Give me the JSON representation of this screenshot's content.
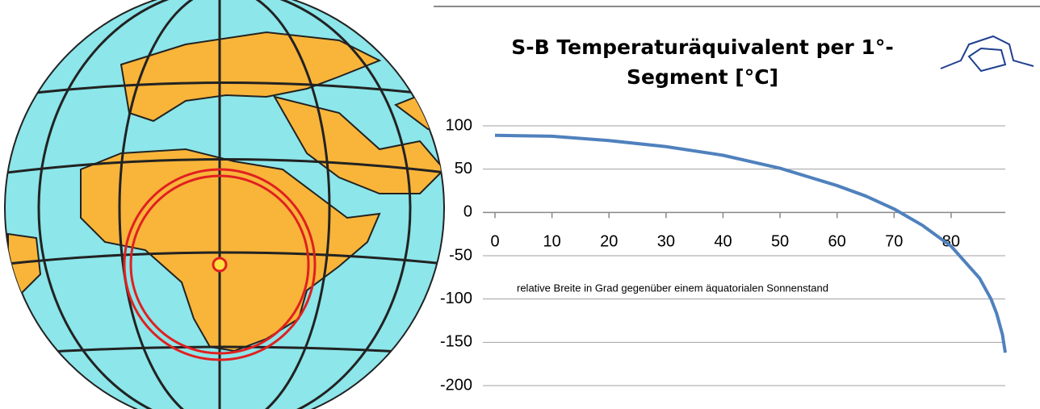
{
  "chart_data": {
    "type": "line",
    "title": "S-B Temperaturäquivalent per 1°-Segment [°C]",
    "x_label": "relative Breite in Grad gegenüber einem äquatorialen Sonnenstand",
    "x": [
      0,
      10,
      20,
      30,
      40,
      50,
      60,
      65,
      70,
      75,
      80,
      85,
      87,
      88,
      89,
      89.5
    ],
    "values": [
      89,
      88,
      83,
      76,
      66,
      51,
      31,
      19,
      4,
      -15,
      -39,
      -76,
      -100,
      -117,
      -141,
      -162
    ],
    "color": "#4f81bd",
    "xlim": [
      0,
      89.5
    ],
    "xticks": [
      0,
      10,
      20,
      30,
      40,
      50,
      60,
      70,
      80
    ],
    "ylim": [
      -200,
      100
    ],
    "yticks": [
      100,
      50,
      0,
      -50,
      -100,
      -150,
      -200
    ],
    "grid": true
  }
}
